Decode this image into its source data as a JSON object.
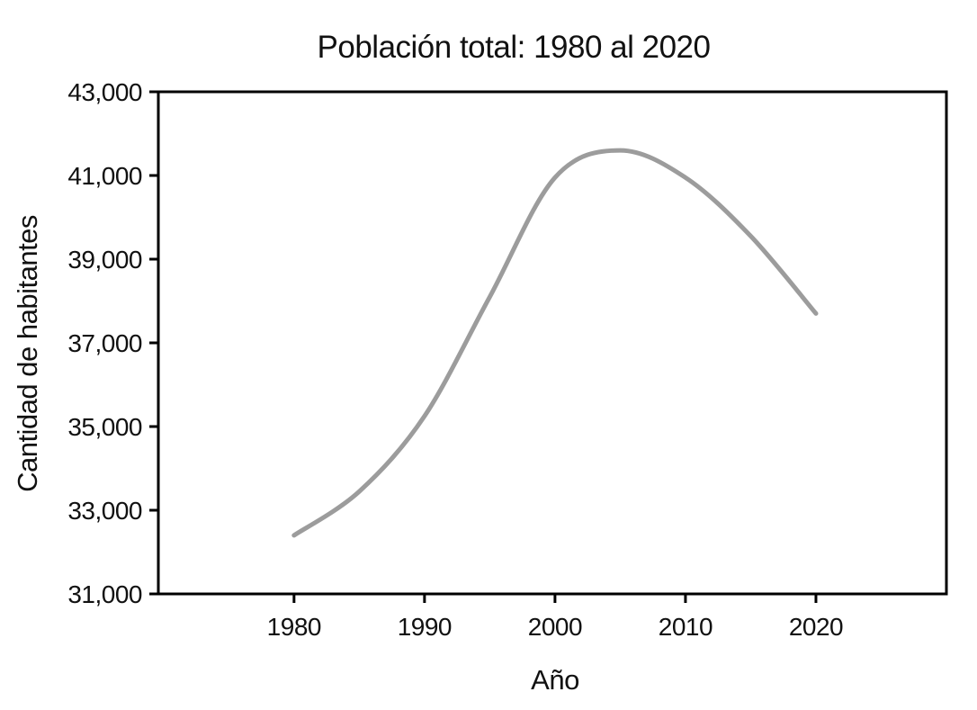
{
  "chart_data": {
    "type": "line",
    "title": "Población total: 1980 al 2020",
    "xlabel": "Año",
    "ylabel": "Cantidad de habitantes",
    "x": [
      1980,
      1985,
      1990,
      1995,
      2000,
      2005,
      2010,
      2015,
      2020
    ],
    "series": [
      {
        "name": "Población total",
        "values": [
          32400,
          33450,
          35250,
          38100,
          40950,
          41600,
          40950,
          39550,
          37700
        ]
      }
    ],
    "x_tick_values": [
      1980,
      1990,
      2000,
      2010,
      2020
    ],
    "x_tick_labels": [
      "1980",
      "1990",
      "2000",
      "2010",
      "2020"
    ],
    "y_tick_values": [
      31000,
      33000,
      35000,
      37000,
      39000,
      41000,
      43000
    ],
    "y_tick_labels": [
      "31,000",
      "33,000",
      "35,000",
      "37,000",
      "39,000",
      "41,000",
      "43,000"
    ],
    "xlim": [
      1969.6,
      2030
    ],
    "ylim": [
      31000,
      43000
    ],
    "grid": false,
    "legend_position": "none",
    "line_color": "#9c9c9c",
    "line_width": 5,
    "axis_color": "#000000",
    "background": "#ffffff"
  }
}
